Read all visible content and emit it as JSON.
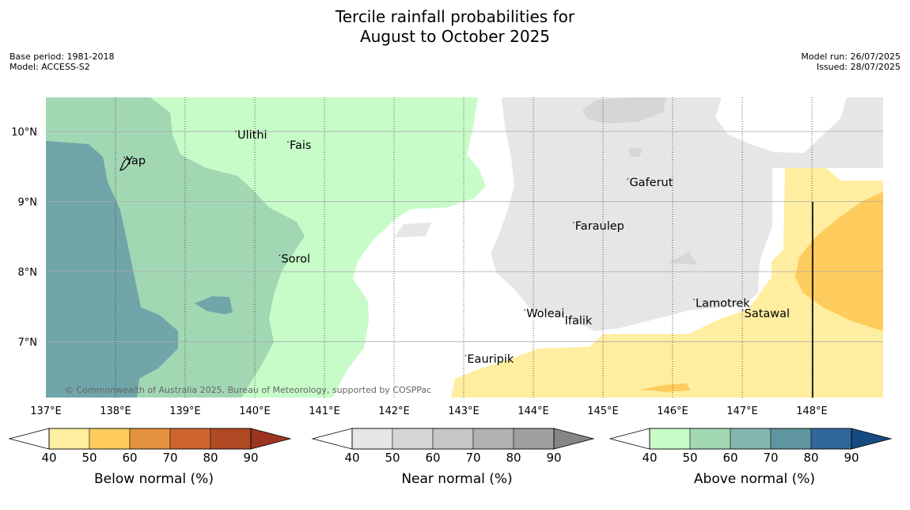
{
  "title": {
    "line1": "Tercile rainfall probabilities for",
    "line2": "August to October 2025"
  },
  "meta": {
    "base_period": "Base period: 1981-2018",
    "model": "Model: ACCESS-S2",
    "model_run": "Model run: 26/07/2025",
    "issued": "Issued: 28/07/2025"
  },
  "map": {
    "lon_range": [
      137,
      149
    ],
    "lat_range": [
      6.2,
      10.5
    ],
    "lon_ticks": [
      "137°E",
      "138°E",
      "139°E",
      "140°E",
      "141°E",
      "142°E",
      "143°E",
      "144°E",
      "145°E",
      "146°E",
      "147°E",
      "148°E"
    ],
    "lat_ticks": [
      "10°N",
      "9°N",
      "8°N",
      "7°N"
    ],
    "places": [
      {
        "name": "Ulithi",
        "lon": 139.75,
        "lat": 9.9
      },
      {
        "name": "Fais",
        "lon": 140.5,
        "lat": 9.75
      },
      {
        "name": "Yap",
        "lon": 138.15,
        "lat": 9.53
      },
      {
        "name": "Gaferut",
        "lon": 145.38,
        "lat": 9.22
      },
      {
        "name": "Faraulep",
        "lon": 144.6,
        "lat": 8.6
      },
      {
        "name": "Sorol",
        "lon": 140.38,
        "lat": 8.13
      },
      {
        "name": "Lamotrek",
        "lon": 146.33,
        "lat": 7.5
      },
      {
        "name": "Woleai",
        "lon": 143.9,
        "lat": 7.35
      },
      {
        "name": "Ifalik",
        "lon": 144.45,
        "lat": 7.25
      },
      {
        "name": "Satawal",
        "lon": 147.03,
        "lat": 7.35
      },
      {
        "name": "Eauripik",
        "lon": 143.05,
        "lat": 6.7
      }
    ],
    "copyright": "© Commonwealth of Australia 2025, Bureau of Meteorology, supported by COSPPac"
  },
  "colorbars": [
    {
      "label": "Below normal (%)",
      "ticks": [
        "40",
        "50",
        "60",
        "70",
        "80",
        "90"
      ],
      "colors": [
        "#ffeda0",
        "#fecc5c",
        "#e3923f",
        "#cd6430",
        "#b04a24",
        "#9b3522"
      ]
    },
    {
      "label": "Near normal (%)",
      "ticks": [
        "40",
        "50",
        "60",
        "70",
        "80",
        "90"
      ],
      "colors": [
        "#e6e6e6",
        "#d6d6d6",
        "#c6c6c6",
        "#b2b2b2",
        "#9f9f9f",
        "#868686"
      ]
    },
    {
      "label": "Above normal (%)",
      "ticks": [
        "40",
        "50",
        "60",
        "70",
        "80",
        "90"
      ],
      "colors": [
        "#c7fcc9",
        "#a2d7b4",
        "#83b6af",
        "#5e95a1",
        "#30679a",
        "#164b82"
      ]
    }
  ]
}
